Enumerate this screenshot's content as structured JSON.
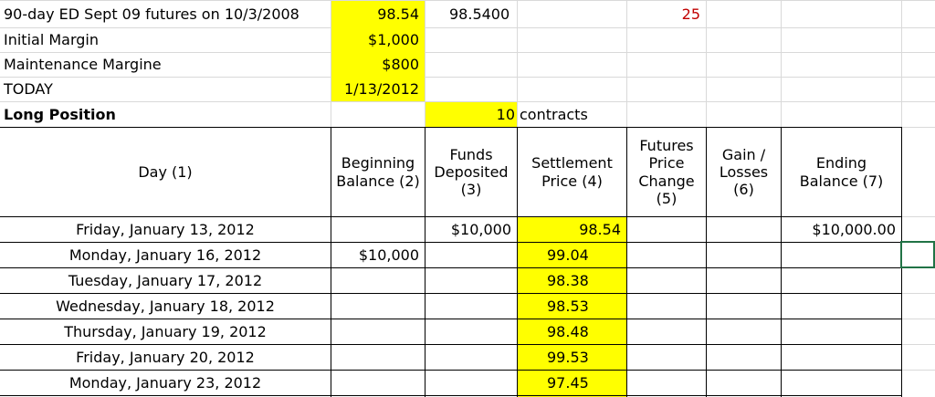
{
  "sheet": {
    "r1": {
      "a": "90-day ED Sept 09 futures on 10/3/2008",
      "b": "98.54",
      "c": "98.5400",
      "f": "25"
    },
    "r2": {
      "a": "Initial Margin",
      "b": "$1,000"
    },
    "r3": {
      "a": "Maintenance Margine",
      "b": "$800"
    },
    "r4": {
      "a": "TODAY",
      "b": "1/13/2012"
    },
    "r5": {
      "a": "Long Position",
      "c": "10",
      "d": "contracts"
    },
    "headers": {
      "day": [
        "Day (1)"
      ],
      "beginning": [
        "Beginning",
        "Balance (2)"
      ],
      "funds": [
        "Funds",
        "Deposited",
        "(3)"
      ],
      "settlement": [
        "Settlement",
        "Price (4)"
      ],
      "change": [
        "Futures",
        "Price",
        "Change",
        "(5)"
      ],
      "gain": [
        "Gain /",
        "Losses",
        "(6)"
      ],
      "ending": [
        "Ending",
        "Balance (7)"
      ]
    },
    "rows": [
      {
        "day": "Friday, January 13, 2012",
        "beginning": "",
        "funds": "$10,000",
        "settlement": "98.54",
        "ending": "$10,000.00"
      },
      {
        "day": "Monday, January 16, 2012",
        "beginning": "$10,000",
        "funds": "",
        "settlement": "99.04",
        "ending": ""
      },
      {
        "day": "Tuesday, January 17, 2012",
        "beginning": "",
        "funds": "",
        "settlement": "98.38",
        "ending": ""
      },
      {
        "day": "Wednesday, January 18, 2012",
        "beginning": "",
        "funds": "",
        "settlement": "98.53",
        "ending": ""
      },
      {
        "day": "Thursday, January 19, 2012",
        "beginning": "",
        "funds": "",
        "settlement": "98.48",
        "ending": ""
      },
      {
        "day": "Friday, January 20, 2012",
        "beginning": "",
        "funds": "",
        "settlement": "99.53",
        "ending": ""
      },
      {
        "day": "Monday, January 23, 2012",
        "beginning": "",
        "funds": "",
        "settlement": "97.45",
        "ending": ""
      }
    ]
  }
}
